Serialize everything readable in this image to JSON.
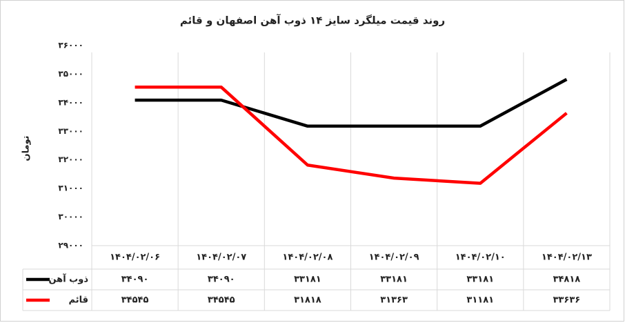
{
  "chart_data": {
    "type": "line",
    "title": "روند قیمت میلگرد سایز ۱۴ ذوب آهن اصفهان و قائم",
    "y_label": "تومان",
    "categories": [
      "۱۴۰۴/۰۲/۰۶",
      "۱۴۰۴/۰۲/۰۷",
      "۱۴۰۴/۰۲/۰۸",
      "۱۴۰۴/۰۲/۰۹",
      "۱۴۰۴/۰۲/۱۰",
      "۱۴۰۴/۰۲/۱۳"
    ],
    "series": [
      {
        "name": "ذوب آهن",
        "color": "#000000",
        "values": [
          34090,
          34090,
          33181,
          33181,
          33181,
          34818
        ],
        "value_labels": [
          "۳۴۰۹۰",
          "۳۴۰۹۰",
          "۳۳۱۸۱",
          "۳۳۱۸۱",
          "۳۳۱۸۱",
          "۳۴۸۱۸"
        ]
      },
      {
        "name": "قائم",
        "color": "#ff0000",
        "values": [
          34545,
          34545,
          31818,
          31363,
          31181,
          33636
        ],
        "value_labels": [
          "۳۴۵۴۵",
          "۳۴۵۴۵",
          "۳۱۸۱۸",
          "۳۱۳۶۳",
          "۳۱۱۸۱",
          "۳۳۶۳۶"
        ]
      }
    ],
    "ylim": [
      29000,
      36000
    ],
    "yticks": [
      {
        "value": 29000,
        "label": "۲۹۰۰۰"
      },
      {
        "value": 30000,
        "label": "۳۰۰۰۰"
      },
      {
        "value": 31000,
        "label": "۳۱۰۰۰"
      },
      {
        "value": 32000,
        "label": "۳۲۰۰۰"
      },
      {
        "value": 33000,
        "label": "۳۳۰۰۰"
      },
      {
        "value": 34000,
        "label": "۳۴۰۰۰"
      },
      {
        "value": 35000,
        "label": "۳۵۰۰۰"
      },
      {
        "value": 36000,
        "label": "۳۶۰۰۰"
      }
    ],
    "grid": true
  }
}
